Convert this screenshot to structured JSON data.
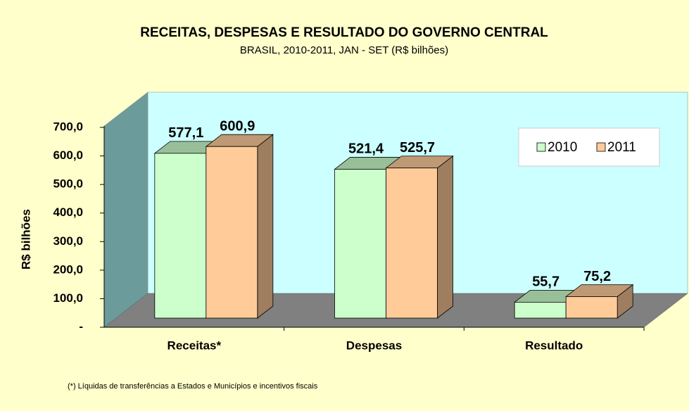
{
  "chart_data": {
    "type": "bar3d",
    "title": "RECEITAS, DESPESAS E RESULTADO DO GOVERNO CENTRAL",
    "subtitle": "BRASIL, 2010-2011, JAN - SET (R$ bilhões)",
    "y_label": "R$ bilhões",
    "footnote": "(*) Líquidas de transferências a Estados e Municípios e incentivos fiscais",
    "categories": [
      "Receitas*",
      "Despesas",
      "Resultado"
    ],
    "series": [
      {
        "name": "2010",
        "color": "#ccffcc",
        "values": [
          577.1,
          521.4,
          55.7
        ],
        "value_labels": [
          "577,1",
          "521,4",
          "55,7"
        ]
      },
      {
        "name": "2011",
        "color": "#ffcc99",
        "values": [
          600.9,
          525.7,
          75.2
        ],
        "value_labels": [
          "600,9",
          "525,7",
          "75,2"
        ]
      }
    ],
    "ylim": [
      0,
      700
    ],
    "yticks": [
      {
        "value": 0,
        "label": "-"
      },
      {
        "value": 100,
        "label": "100,0"
      },
      {
        "value": 200,
        "label": "200,0"
      },
      {
        "value": 300,
        "label": "300,0"
      },
      {
        "value": 400,
        "label": "400,0"
      },
      {
        "value": 500,
        "label": "500,0"
      },
      {
        "value": 600,
        "label": "600,0"
      },
      {
        "value": 700,
        "label": "700,0"
      }
    ],
    "legend": "top-right"
  }
}
